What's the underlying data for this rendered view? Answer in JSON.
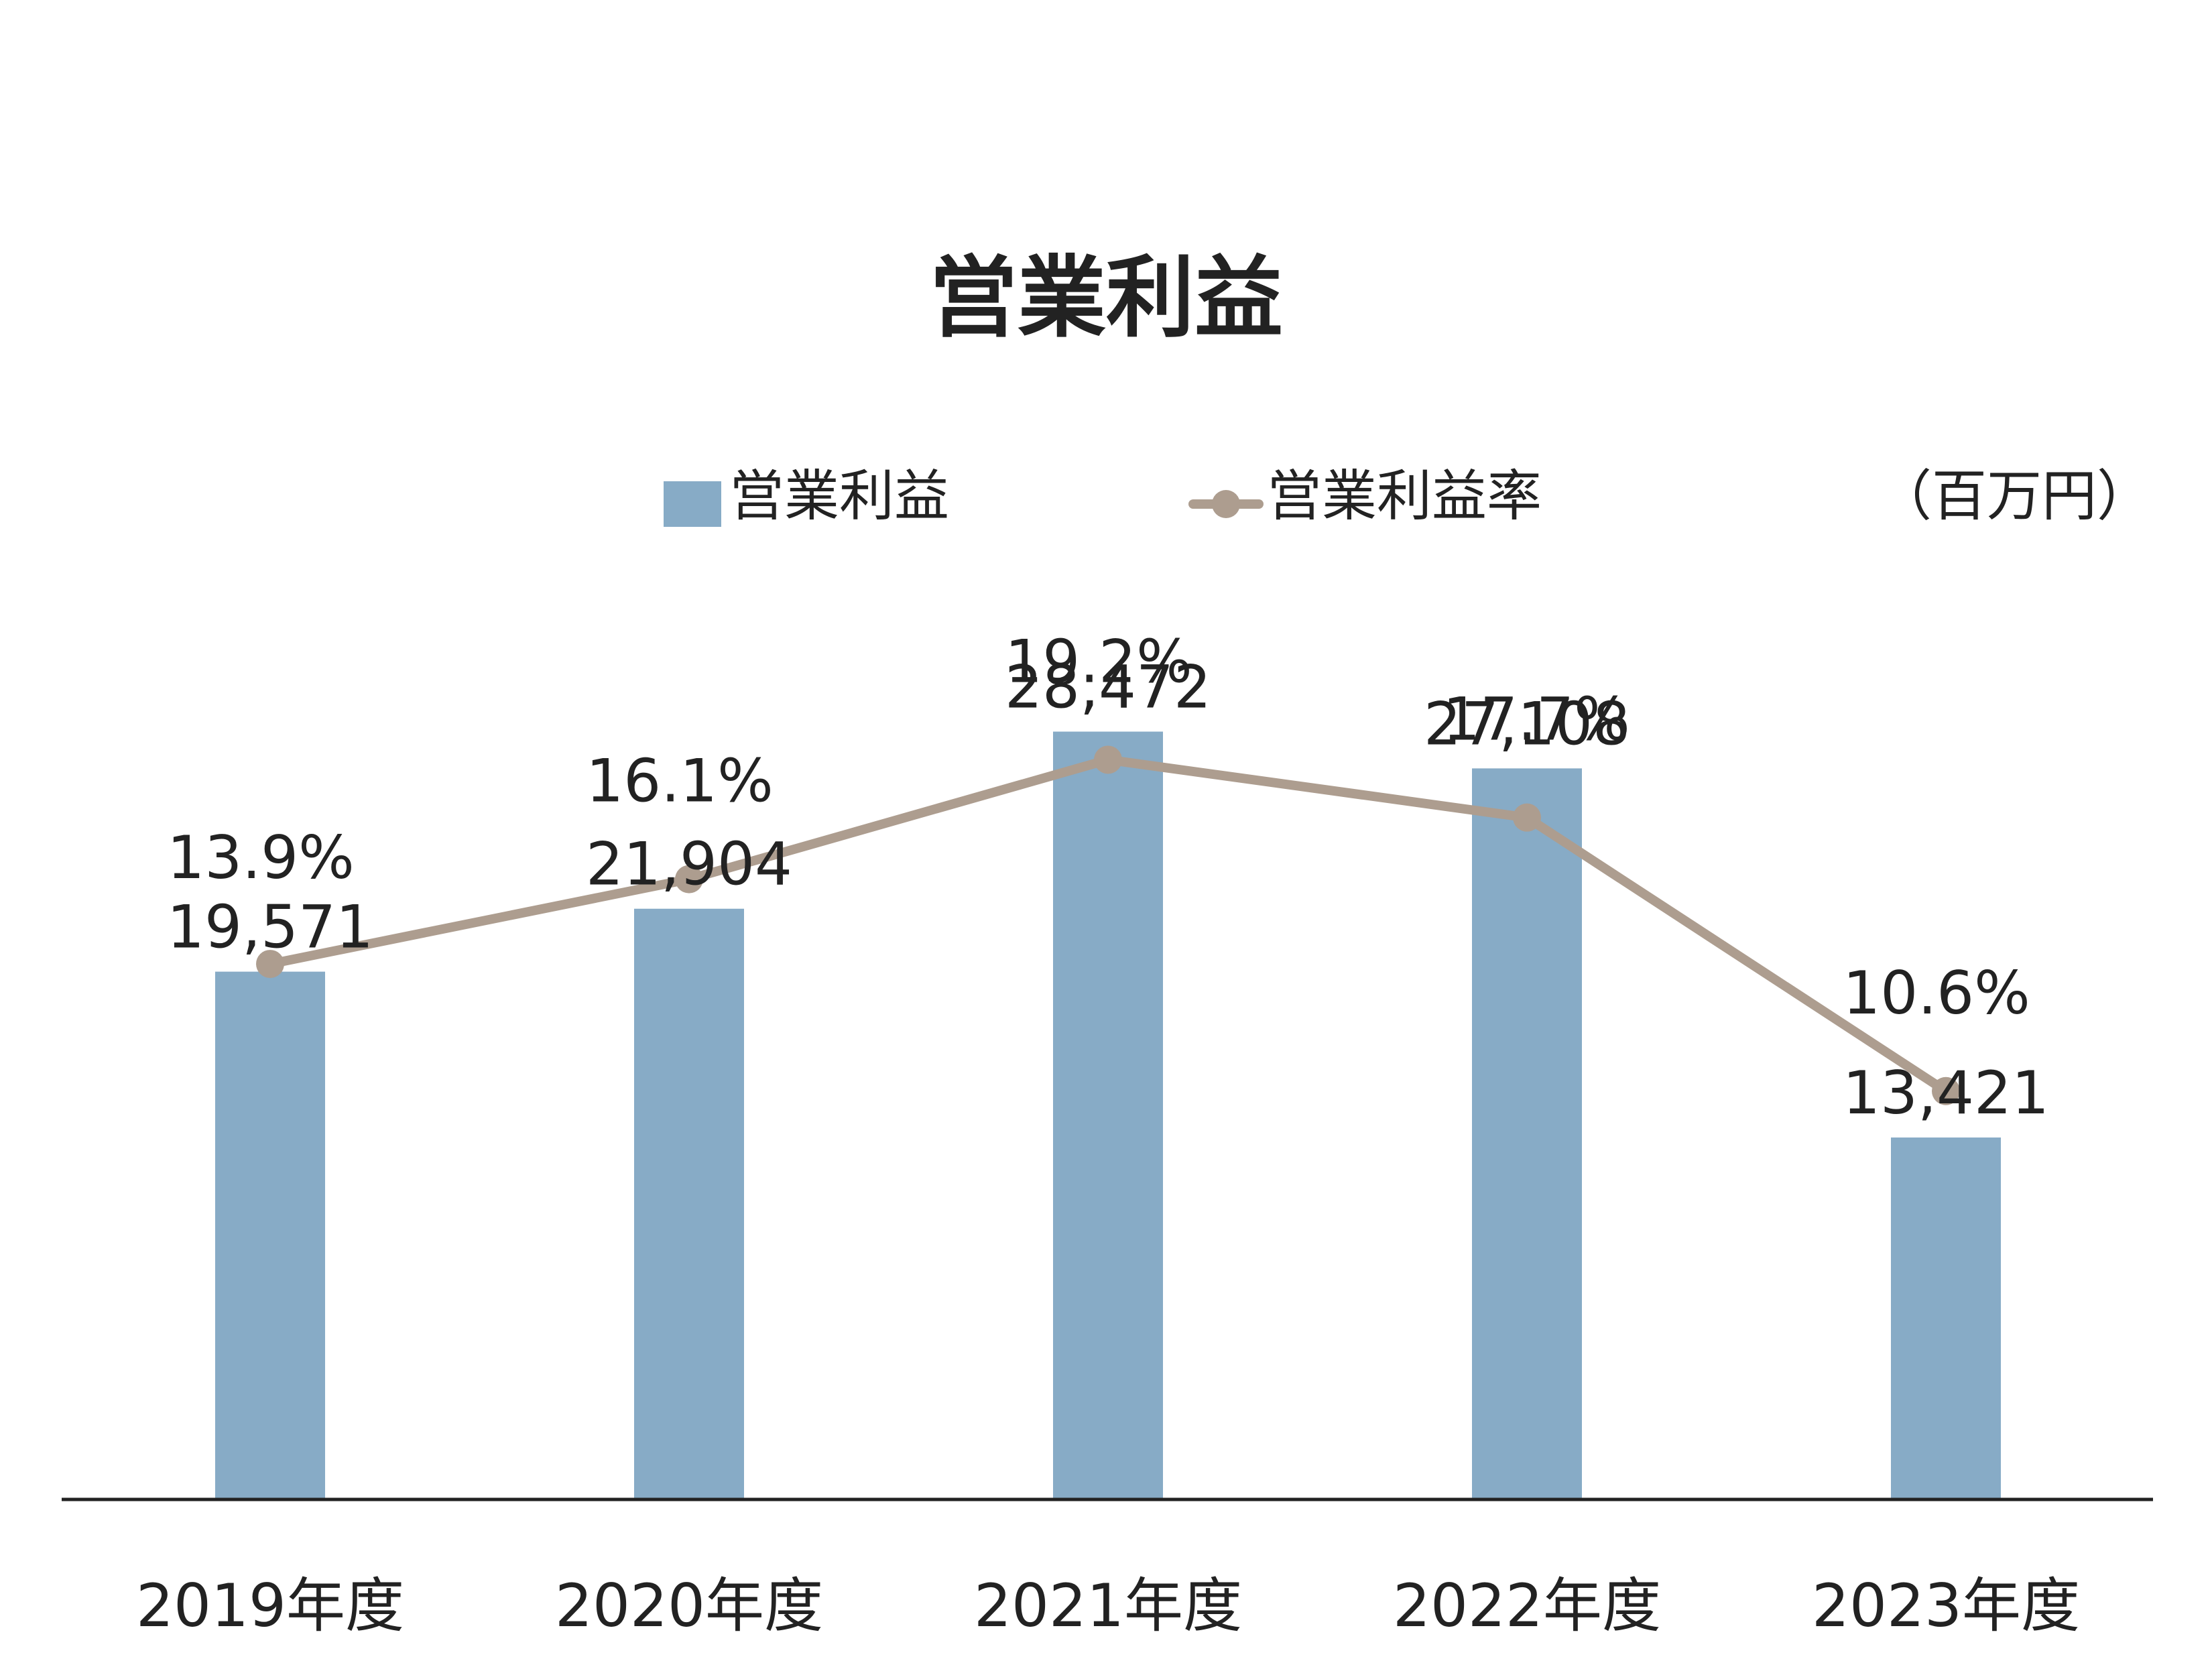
{
  "chart_data": {
    "type": "bar",
    "title": "営業利益",
    "unit": "（百万円）",
    "categories": [
      "2019年度",
      "2020年度",
      "2021年度",
      "2022年度",
      "2023年度"
    ],
    "series": [
      {
        "name": "営業利益",
        "type": "bar",
        "color": "#87abc6",
        "values": [
          19571,
          21904,
          28472,
          27108,
          13421
        ],
        "labels": [
          "19,571",
          "21,904",
          "28,472",
          "27,108",
          "13,421"
        ]
      },
      {
        "name": "営業利益率",
        "type": "line",
        "color": "#ad9d8f",
        "values": [
          13.9,
          16.1,
          19.2,
          17.7,
          10.6
        ],
        "labels": [
          "13.9%",
          "16.1%",
          "19.2%",
          "17.7%",
          "10.6%"
        ]
      }
    ],
    "ylim": [
      0,
      30000
    ],
    "y2lim": [
      0,
      21
    ],
    "grid": false,
    "legend": "top"
  }
}
